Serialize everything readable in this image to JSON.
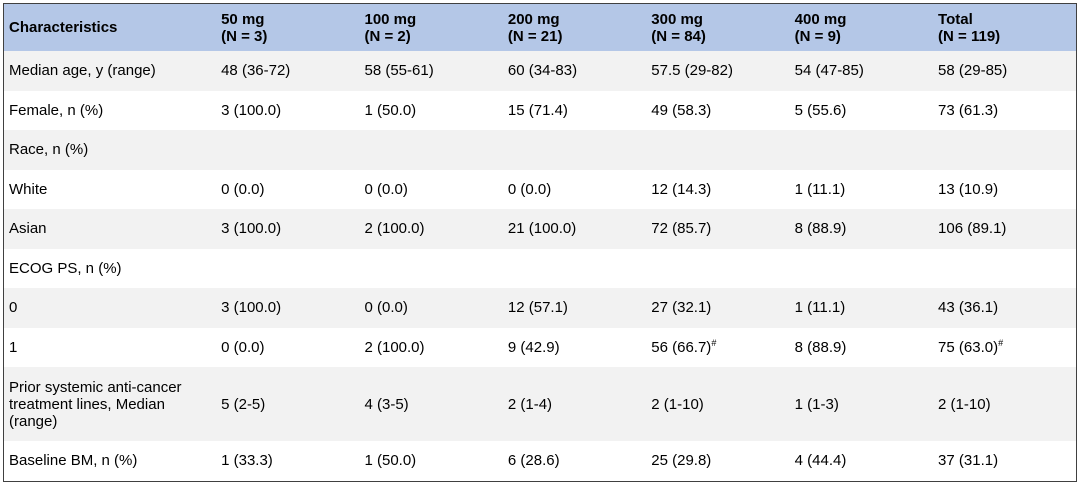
{
  "table": {
    "header": [
      {
        "name": "Characteristics"
      },
      {
        "name": "50 mg",
        "n": "(N = 3)"
      },
      {
        "name": "100 mg",
        "n": "(N = 2)"
      },
      {
        "name": "200 mg",
        "n": "(N = 21)"
      },
      {
        "name": "300 mg",
        "n": "(N = 84)"
      },
      {
        "name": "400 mg",
        "n": "(N = 9)"
      },
      {
        "name": "Total",
        "n": "(N = 119)"
      }
    ],
    "rows": [
      [
        "Median age, y (range)",
        "48 (36-72)",
        "58 (55-61)",
        "60 (34-83)",
        "57.5 (29-82)",
        "54 (47-85)",
        "58 (29-85)"
      ],
      [
        "Female, n (%)",
        "3 (100.0)",
        "1 (50.0)",
        "15 (71.4)",
        "49 (58.3)",
        "5 (55.6)",
        "73 (61.3)"
      ],
      [
        "Race, n (%)"
      ],
      [
        "White",
        "0 (0.0)",
        "0 (0.0)",
        "0 (0.0)",
        "12 (14.3)",
        "1 (11.1)",
        "13 (10.9)"
      ],
      [
        "Asian",
        "3 (100.0)",
        "2 (100.0)",
        "21 (100.0)",
        "72 (85.7)",
        "8 (88.9)",
        "106 (89.1)"
      ],
      [
        "ECOG PS, n (%)"
      ],
      [
        "0",
        "3 (100.0)",
        "0 (0.0)",
        "12 (57.1)",
        "27 (32.1)",
        "1 (11.1)",
        "43 (36.1)"
      ],
      [
        "1",
        "0 (0.0)",
        "2 (100.0)",
        "9 (42.9)",
        {
          "text": "56 (66.7)",
          "sup": "#"
        },
        "8 (88.9)",
        {
          "text": "75 (63.0)",
          "sup": "#"
        }
      ],
      [
        "Prior systemic anti-cancer treatment lines, Median (range)",
        "5 (2-5)",
        "4 (3-5)",
        "2 (1-4)",
        "2 (1-10)",
        "1 (1-3)",
        "2 (1-10)"
      ],
      [
        "Baseline BM, n (%)",
        "1 (33.3)",
        "1 (50.0)",
        "6 (28.6)",
        "25 (29.8)",
        "4 (44.4)",
        "37 (31.1)"
      ]
    ]
  }
}
